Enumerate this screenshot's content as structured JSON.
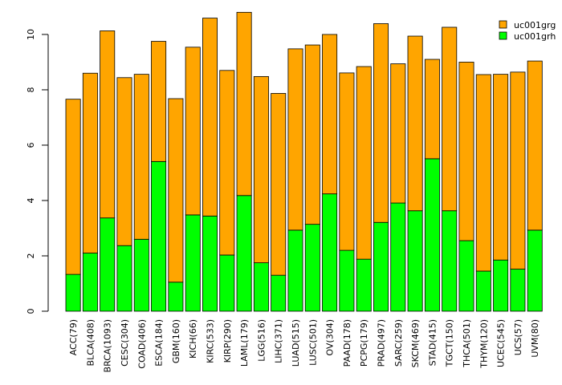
{
  "chart_data": {
    "type": "bar",
    "stacked": true,
    "categories": [
      "ACC(79)",
      "BLCA(408)",
      "BRCA(1093)",
      "CESC(304)",
      "COAD(406)",
      "ESCA(184)",
      "GBM(160)",
      "KICH(66)",
      "KIRC(533)",
      "KIRP(290)",
      "LAML(179)",
      "LGG(516)",
      "LIHC(371)",
      "LUAD(515)",
      "LUSC(501)",
      "OV(304)",
      "PAAD(178)",
      "PCPG(179)",
      "PRAD(497)",
      "SARC(259)",
      "SKCM(469)",
      "STAD(415)",
      "TGCT(150)",
      "THCA(501)",
      "THYM(120)",
      "UCEC(545)",
      "UCS(57)",
      "UVM(80)"
    ],
    "series": [
      {
        "name": "uc001grh",
        "color": "#00ff00",
        "values": [
          1.33,
          2.1,
          3.37,
          2.37,
          2.6,
          5.41,
          1.05,
          3.48,
          3.44,
          2.03,
          4.18,
          1.75,
          1.3,
          2.93,
          3.14,
          4.24,
          2.2,
          1.88,
          3.21,
          3.91,
          3.63,
          5.51,
          3.63,
          2.55,
          1.45,
          1.85,
          1.52,
          2.93
        ]
      },
      {
        "name": "uc001grg",
        "color": "#ffa500",
        "values": [
          6.33,
          6.5,
          6.76,
          6.07,
          5.96,
          4.34,
          6.63,
          6.06,
          7.15,
          6.67,
          6.62,
          6.73,
          6.57,
          6.55,
          6.48,
          5.76,
          6.41,
          6.96,
          7.18,
          5.03,
          6.31,
          3.59,
          6.63,
          6.45,
          7.1,
          6.71,
          7.12,
          6.11
        ]
      }
    ],
    "legend": {
      "position": "top-right",
      "entries": [
        "uc001grg",
        "uc001grh"
      ]
    },
    "y_ticks": [
      "0",
      "2",
      "4",
      "6",
      "8",
      "10"
    ],
    "ylim": [
      0,
      10.81
    ],
    "title": "",
    "xlabel": "",
    "ylabel": ""
  }
}
